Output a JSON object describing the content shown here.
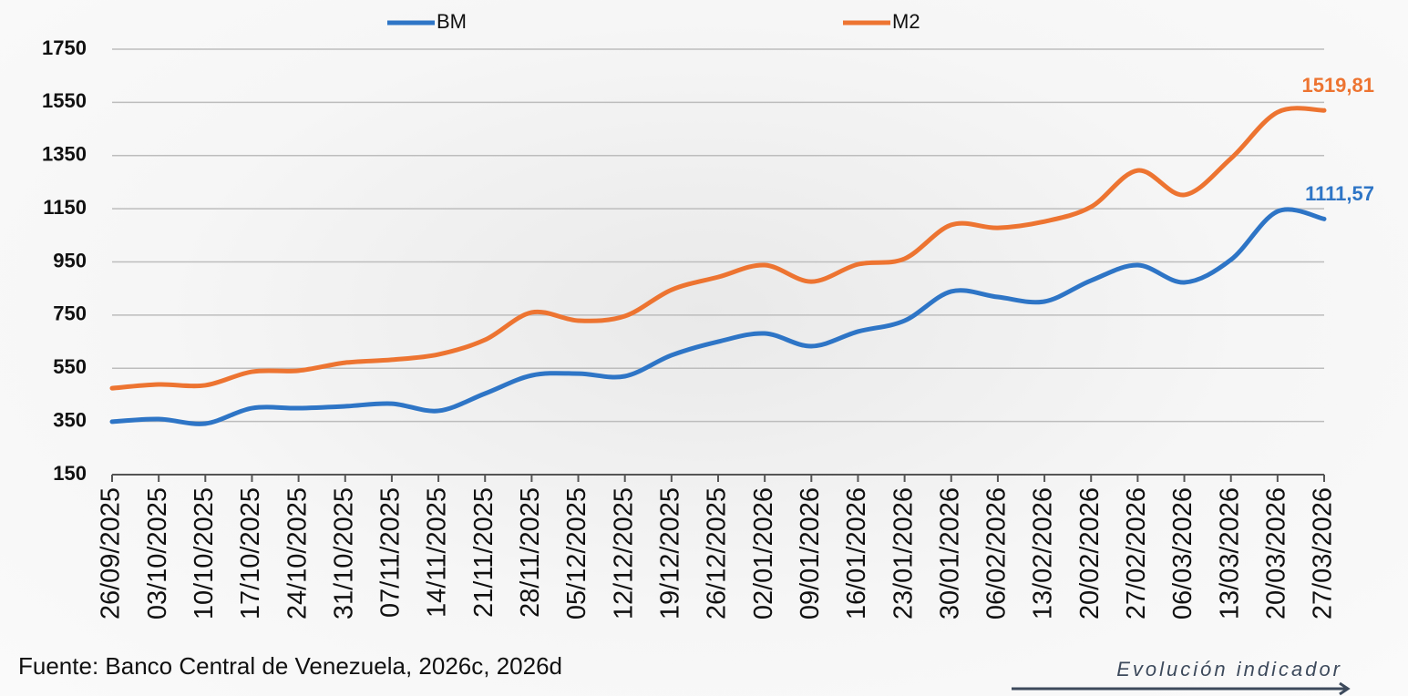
{
  "chart_data": {
    "type": "line",
    "categories": [
      "26/09/2025",
      "03/10/2025",
      "10/10/2025",
      "17/10/2025",
      "24/10/2025",
      "31/10/2025",
      "07/11/2025",
      "14/11/2025",
      "21/11/2025",
      "28/11/2025",
      "05/12/2025",
      "12/12/2025",
      "19/12/2025",
      "26/12/2025",
      "02/01/2026",
      "09/01/2026",
      "16/01/2026",
      "23/01/2026",
      "30/01/2026",
      "06/02/2026",
      "13/02/2026",
      "20/02/2026",
      "27/02/2026",
      "06/03/2026",
      "13/03/2026",
      "20/03/2026",
      "27/03/2026"
    ],
    "series": [
      {
        "name": "BM",
        "color": "#2e75c6",
        "values": [
          349,
          359,
          342,
          400,
          400,
          407,
          417,
          390,
          455,
          523,
          530,
          520,
          599,
          650,
          681,
          633,
          688,
          729,
          839,
          818,
          801,
          880,
          938,
          873,
          958,
          1140,
          1111.57
        ],
        "value_labels": [
          null,
          null,
          null,
          null,
          null,
          null,
          null,
          null,
          null,
          null,
          null,
          null,
          null,
          null,
          null,
          null,
          null,
          null,
          null,
          null,
          null,
          null,
          null,
          null,
          null,
          null,
          "1111,57"
        ]
      },
      {
        "name": "M2",
        "color": "#ed7431",
        "values": [
          475,
          489,
          486,
          537,
          541,
          571,
          582,
          602,
          657,
          760,
          729,
          746,
          845,
          893,
          938,
          876,
          941,
          962,
          1089,
          1078,
          1102,
          1157,
          1294,
          1202,
          1339,
          1513,
          1519.81
        ],
        "value_labels": [
          null,
          null,
          null,
          null,
          null,
          null,
          null,
          null,
          null,
          null,
          null,
          null,
          null,
          null,
          null,
          null,
          null,
          null,
          null,
          null,
          null,
          null,
          null,
          null,
          null,
          null,
          "1519,81"
        ]
      }
    ],
    "ylim": [
      150,
      1750
    ],
    "yticks": [
      150,
      350,
      550,
      750,
      950,
      1150,
      1350,
      1550,
      1750
    ],
    "grid": true,
    "legend": "top",
    "source": "Fuente: Banco Central de Venezuela, 2026c, 2026d",
    "annotation": "Evolución indicador"
  }
}
